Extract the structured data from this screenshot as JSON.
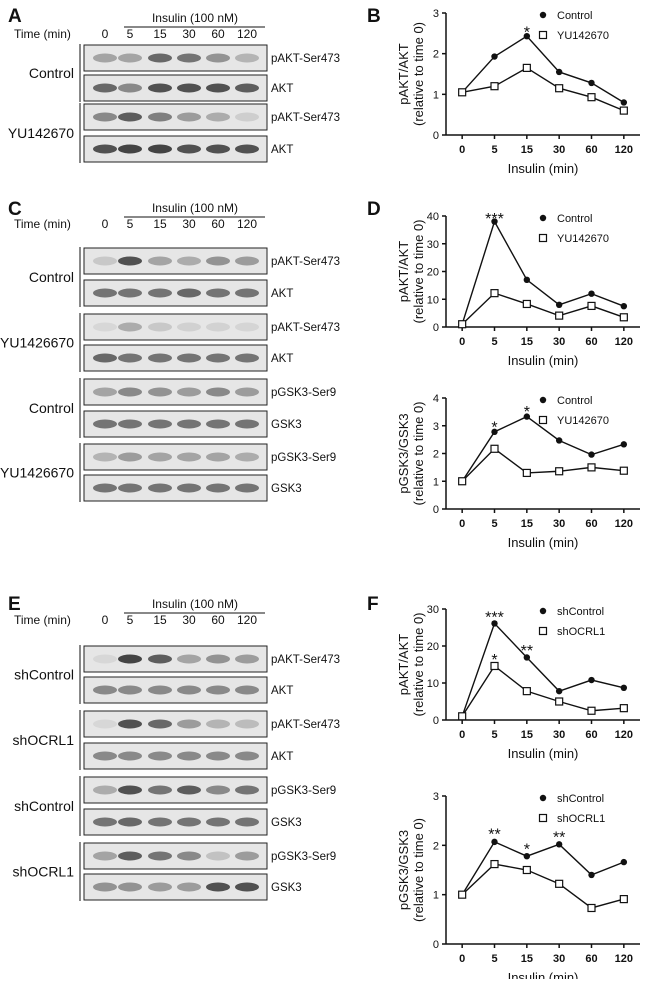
{
  "panel_letters": {
    "a": "A",
    "b": "B",
    "c": "C",
    "d": "D",
    "e": "E",
    "f": "F"
  },
  "blots": [
    {
      "id": "A",
      "header": "Insulin (100 nM)",
      "time_label": "Time (min)",
      "times": [
        "0",
        "5",
        "15",
        "30",
        "60",
        "120"
      ],
      "groups": [
        {
          "name": "Control",
          "rows": [
            {
              "label": "pAKT-Ser473",
              "intensity": [
                0.45,
                0.45,
                0.75,
                0.7,
                0.55,
                0.35
              ]
            },
            {
              "label": "AKT",
              "intensity": [
                0.75,
                0.6,
                0.85,
                0.85,
                0.85,
                0.8
              ]
            }
          ]
        },
        {
          "name": "YU142670",
          "rows": [
            {
              "label": "pAKT-Ser473",
              "intensity": [
                0.6,
                0.8,
                0.65,
                0.5,
                0.4,
                0.15
              ]
            },
            {
              "label": "AKT",
              "intensity": [
                0.85,
                0.9,
                0.9,
                0.85,
                0.85,
                0.85
              ]
            }
          ]
        }
      ]
    },
    {
      "id": "C",
      "header": "Insulin (100 nM)",
      "time_label": "Time (min)",
      "times": [
        "0",
        "5",
        "15",
        "30",
        "60",
        "120"
      ],
      "groups": [
        {
          "name": "Control",
          "rows": [
            {
              "label": "pAKT-Ser473",
              "intensity": [
                0.2,
                0.85,
                0.45,
                0.4,
                0.55,
                0.5
              ]
            },
            {
              "label": "AKT",
              "intensity": [
                0.7,
                0.7,
                0.7,
                0.75,
                0.7,
                0.7
              ]
            }
          ]
        },
        {
          "name": "YU1426670",
          "rows": [
            {
              "label": "pAKT-Ser473",
              "intensity": [
                0.05,
                0.4,
                0.2,
                0.12,
                0.1,
                0.08
              ]
            },
            {
              "label": "AKT",
              "intensity": [
                0.75,
                0.7,
                0.7,
                0.7,
                0.7,
                0.7
              ]
            }
          ]
        },
        {
          "name": "Control",
          "rows": [
            {
              "label": "pGSK3-Ser9",
              "intensity": [
                0.45,
                0.6,
                0.55,
                0.5,
                0.6,
                0.5
              ]
            },
            {
              "label": "GSK3",
              "intensity": [
                0.7,
                0.7,
                0.7,
                0.7,
                0.7,
                0.7
              ]
            }
          ]
        },
        {
          "name": "YU1426670",
          "rows": [
            {
              "label": "pGSK3-Ser9",
              "intensity": [
                0.35,
                0.5,
                0.45,
                0.45,
                0.45,
                0.4
              ]
            },
            {
              "label": "GSK3",
              "intensity": [
                0.7,
                0.7,
                0.7,
                0.7,
                0.7,
                0.7
              ]
            }
          ]
        }
      ]
    },
    {
      "id": "E",
      "header": "Insulin (100 nM)",
      "time_label": "Time (min)",
      "times": [
        "0",
        "5",
        "15",
        "30",
        "60",
        "120"
      ],
      "groups": [
        {
          "name": "shControl",
          "rows": [
            {
              "label": "pAKT-Ser473",
              "intensity": [
                0.05,
                0.9,
                0.8,
                0.45,
                0.55,
                0.5
              ]
            },
            {
              "label": "AKT",
              "intensity": [
                0.6,
                0.6,
                0.6,
                0.6,
                0.6,
                0.6
              ]
            }
          ]
        },
        {
          "name": "shOCRL1",
          "rows": [
            {
              "label": "pAKT-Ser473",
              "intensity": [
                0.05,
                0.85,
                0.75,
                0.5,
                0.35,
                0.3
              ]
            },
            {
              "label": "AKT",
              "intensity": [
                0.6,
                0.6,
                0.6,
                0.6,
                0.6,
                0.6
              ]
            }
          ]
        },
        {
          "name": "shControl",
          "rows": [
            {
              "label": "pGSK3-Ser9",
              "intensity": [
                0.4,
                0.85,
                0.7,
                0.8,
                0.6,
                0.7
              ]
            },
            {
              "label": "GSK3",
              "intensity": [
                0.7,
                0.75,
                0.7,
                0.7,
                0.7,
                0.7
              ]
            }
          ]
        },
        {
          "name": "shOCRL1",
          "rows": [
            {
              "label": "pGSK3-Ser9",
              "intensity": [
                0.45,
                0.8,
                0.7,
                0.6,
                0.25,
                0.5
              ]
            },
            {
              "label": "GSK3",
              "intensity": [
                0.55,
                0.55,
                0.5,
                0.5,
                0.85,
                0.85
              ]
            }
          ]
        }
      ]
    }
  ],
  "chart_data": [
    {
      "id": "B",
      "type": "line",
      "categories": [
        "0",
        "5",
        "15",
        "30",
        "60",
        "120"
      ],
      "ylabel": "pAKT/AKT",
      "ylabel2": "(relative to time 0)",
      "xlabel": "Insulin (min)",
      "ylim": [
        0,
        3
      ],
      "yticks": [
        0,
        1,
        2,
        3
      ],
      "series": [
        {
          "name": "Control",
          "marker": "filled",
          "values": [
            1.05,
            1.93,
            2.43,
            1.55,
            1.28,
            0.8
          ]
        },
        {
          "name": "YU142670",
          "marker": "open",
          "values": [
            1.05,
            1.2,
            1.65,
            1.15,
            0.93,
            0.6
          ]
        }
      ],
      "annotations": [
        {
          "category": "15",
          "text": "*",
          "y": 2.6
        }
      ]
    },
    {
      "id": "D1",
      "type": "line",
      "categories": [
        "0",
        "5",
        "15",
        "30",
        "60",
        "120"
      ],
      "ylabel": "pAKT/AKT",
      "ylabel2": "(relative to time 0)",
      "xlabel": "Insulin (min)",
      "ylim": [
        0,
        40
      ],
      "yticks": [
        0,
        10,
        20,
        30,
        40
      ],
      "series": [
        {
          "name": "Control",
          "marker": "filled",
          "values": [
            1,
            38,
            17,
            8,
            12,
            7.5
          ]
        },
        {
          "name": "YU142670",
          "marker": "open",
          "values": [
            1,
            12.2,
            8.3,
            4.1,
            7.6,
            3.5
          ]
        }
      ],
      "annotations": [
        {
          "category": "5",
          "text": "***",
          "y": 40
        }
      ]
    },
    {
      "id": "D2",
      "type": "line",
      "categories": [
        "0",
        "5",
        "15",
        "30",
        "60",
        "120"
      ],
      "ylabel": "pGSK3/GSK3",
      "ylabel2": "(relative to time 0)",
      "xlabel": "Insulin (min)",
      "ylim": [
        0,
        4
      ],
      "yticks": [
        0,
        1,
        2,
        3,
        4
      ],
      "series": [
        {
          "name": "Control",
          "marker": "filled",
          "values": [
            1,
            2.78,
            3.33,
            2.47,
            1.96,
            2.33
          ]
        },
        {
          "name": "YU142670",
          "marker": "open",
          "values": [
            1,
            2.17,
            1.3,
            1.36,
            1.5,
            1.38
          ]
        }
      ],
      "annotations": [
        {
          "category": "5",
          "text": "*",
          "y": 3.05
        },
        {
          "category": "15",
          "text": "*",
          "y": 3.6
        }
      ]
    },
    {
      "id": "F1",
      "type": "line",
      "categories": [
        "0",
        "5",
        "15",
        "30",
        "60",
        "120"
      ],
      "ylabel": "pAKT/AKT",
      "ylabel2": "(relative to time 0)",
      "xlabel": "Insulin (min)",
      "ylim": [
        0,
        30
      ],
      "yticks": [
        0,
        10,
        20,
        30
      ],
      "series": [
        {
          "name": "shControl",
          "marker": "filled",
          "values": [
            1,
            26.1,
            16.9,
            7.8,
            10.8,
            8.7
          ]
        },
        {
          "name": "shOCRL1",
          "marker": "open",
          "values": [
            1,
            14.6,
            7.8,
            5,
            2.5,
            3.2
          ]
        }
      ],
      "annotations": [
        {
          "category": "5",
          "text": "***",
          "y": 28.5
        },
        {
          "category": "15",
          "text": "**",
          "y": 19.5
        },
        {
          "category": "5",
          "text": "*",
          "y": 17
        }
      ]
    },
    {
      "id": "F2",
      "type": "line",
      "categories": [
        "0",
        "5",
        "15",
        "30",
        "60",
        "120"
      ],
      "ylabel": "pGSK3/GSK3",
      "ylabel2": "(relative to time 0)",
      "xlabel": "Insulin (min)",
      "ylim": [
        0,
        3
      ],
      "yticks": [
        0,
        1,
        2,
        3
      ],
      "series": [
        {
          "name": "shControl",
          "marker": "filled",
          "values": [
            1,
            2.07,
            1.78,
            2.02,
            1.4,
            1.66
          ]
        },
        {
          "name": "shOCRL1",
          "marker": "open",
          "values": [
            1,
            1.62,
            1.5,
            1.22,
            0.73,
            0.91
          ]
        }
      ],
      "annotations": [
        {
          "category": "5",
          "text": "**",
          "y": 2.28
        },
        {
          "category": "15",
          "text": "*",
          "y": 1.98
        },
        {
          "category": "30",
          "text": "**",
          "y": 2.22
        }
      ]
    }
  ]
}
